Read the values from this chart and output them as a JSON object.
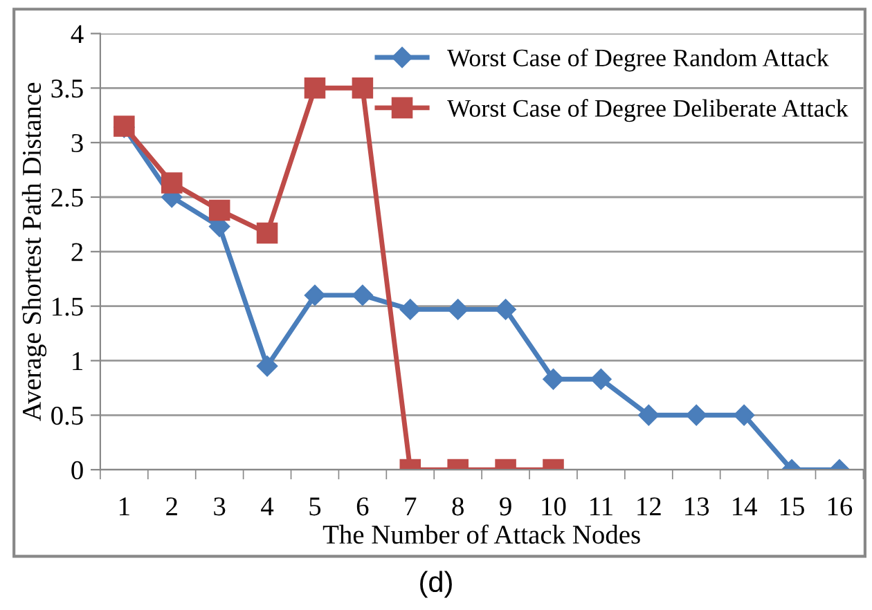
{
  "chart_data": {
    "type": "line",
    "ylabel": "Average Shortest Path Distance",
    "xlabel": "The Number of Attack Nodes",
    "categories": [
      "1",
      "2",
      "3",
      "4",
      "5",
      "6",
      "7",
      "8",
      "9",
      "10",
      "11",
      "12",
      "13",
      "14",
      "15",
      "16"
    ],
    "series": [
      {
        "name": "Worst Case of Degree Random Attack",
        "color": "#4a7ebb",
        "marker": "diamond",
        "values": [
          3.14,
          2.5,
          2.23,
          0.95,
          1.6,
          1.6,
          1.47,
          1.47,
          1.47,
          0.83,
          0.83,
          0.5,
          0.5,
          0.5,
          0,
          0
        ]
      },
      {
        "name": "Worst Case of Degree Deliberate Attack",
        "color": "#be4b48",
        "marker": "square",
        "values": [
          3.15,
          2.63,
          2.38,
          2.17,
          3.5,
          3.5,
          0,
          0,
          0,
          0,
          null,
          null,
          null,
          null,
          null,
          null
        ]
      }
    ],
    "ylim": [
      0,
      4
    ],
    "yticks": [
      0,
      0.5,
      1,
      1.5,
      2,
      2.5,
      3,
      3.5,
      4
    ],
    "grid": "y",
    "legend": "top right",
    "line_style": "solid",
    "annotations": [
      "(d)"
    ]
  }
}
